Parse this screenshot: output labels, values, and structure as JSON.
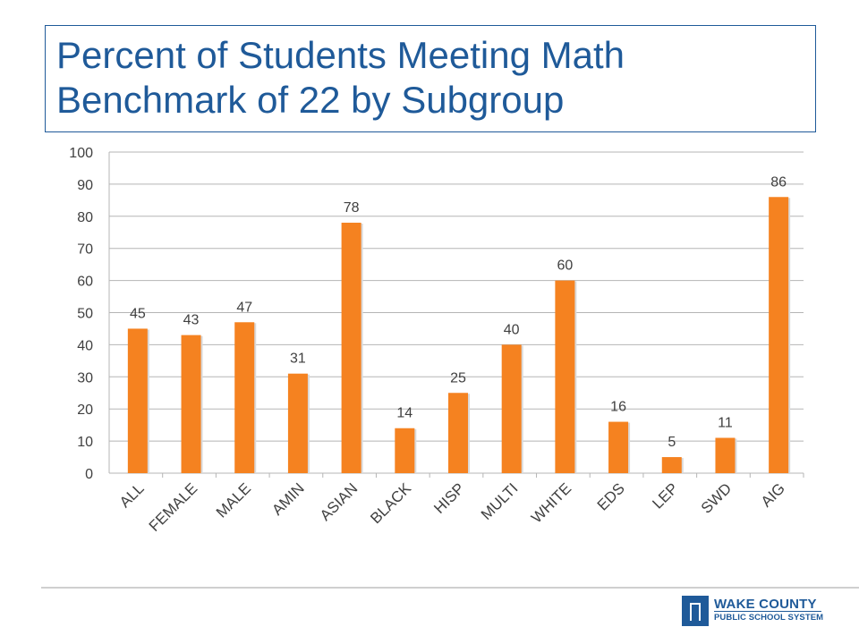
{
  "title": "Percent of Students Meeting Math Benchmark of 22 by Subgroup",
  "logo": {
    "line1": "WAKE COUNTY",
    "line2": "PUBLIC SCHOOL SYSTEM"
  },
  "colors": {
    "bar": "#f58220",
    "title": "#1f5a99",
    "grid": "#b5b5b5",
    "text": "#404040"
  },
  "chart_data": {
    "type": "bar",
    "title": "Percent of Students Meeting Math Benchmark of 22 by Subgroup",
    "xlabel": "",
    "ylabel": "",
    "ylim": [
      0,
      100
    ],
    "yticks": [
      0,
      10,
      20,
      30,
      40,
      50,
      60,
      70,
      80,
      90,
      100
    ],
    "grid": true,
    "legend": "none",
    "categories": [
      "ALL",
      "FEMALE",
      "MALE",
      "AMIN",
      "ASIAN",
      "BLACK",
      "HISP",
      "MULTI",
      "WHITE",
      "EDS",
      "LEP",
      "SWD",
      "AIG"
    ],
    "values": [
      45,
      43,
      47,
      31,
      78,
      14,
      25,
      40,
      60,
      16,
      5,
      11,
      86
    ],
    "data_labels": [
      "45",
      "43",
      "47",
      "31",
      "78",
      "14",
      "25",
      "40",
      "60",
      "16",
      "5",
      "11",
      "86"
    ]
  }
}
